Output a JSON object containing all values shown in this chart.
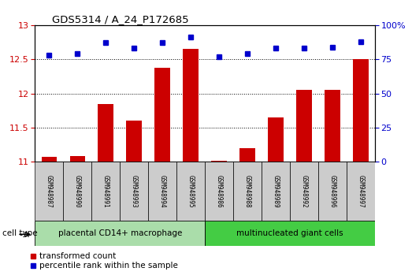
{
  "title": "GDS5314 / A_24_P172685",
  "samples": [
    "GSM948987",
    "GSM948990",
    "GSM948991",
    "GSM948993",
    "GSM948994",
    "GSM948995",
    "GSM948986",
    "GSM948988",
    "GSM948989",
    "GSM948992",
    "GSM948996",
    "GSM948997"
  ],
  "transformed_count": [
    11.07,
    11.09,
    11.85,
    11.6,
    12.37,
    12.65,
    11.02,
    11.2,
    11.65,
    12.05,
    12.05,
    12.5
  ],
  "percentile_rank": [
    78,
    79,
    87,
    83,
    87,
    91,
    77,
    79,
    83,
    83,
    84,
    88
  ],
  "group1_count": 6,
  "group2_count": 6,
  "group1_label": "placental CD14+ macrophage",
  "group2_label": "multinucleated giant cells",
  "cell_type_label": "cell type",
  "ylim_left": [
    11,
    13
  ],
  "ylim_right": [
    0,
    100
  ],
  "yticks_left": [
    11,
    11.5,
    12,
    12.5,
    13
  ],
  "yticks_right": [
    0,
    25,
    50,
    75,
    100
  ],
  "bar_color": "#cc0000",
  "dot_color": "#0000cc",
  "group1_color": "#aaddaa",
  "group2_color": "#44cc44",
  "legend_bar_label": "transformed count",
  "legend_dot_label": "percentile rank within the sample",
  "bar_width": 0.55
}
